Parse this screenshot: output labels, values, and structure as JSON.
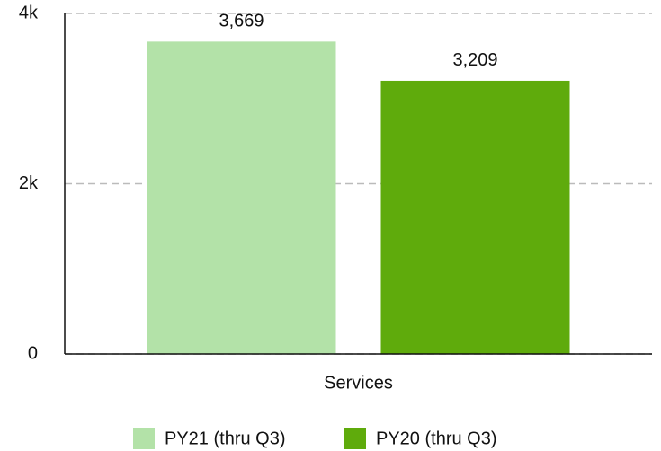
{
  "chart_data": {
    "type": "bar",
    "categories": [
      "Services"
    ],
    "series": [
      {
        "name": "PY21 (thru Q3)",
        "color": "#b3e2a8",
        "values": [
          3669
        ],
        "value_labels": [
          "3,669"
        ]
      },
      {
        "name": "PY20 (thru Q3)",
        "color": "#5fab0c",
        "values": [
          3209
        ],
        "value_labels": [
          "3,209"
        ]
      }
    ],
    "ylim": [
      0,
      4000
    ],
    "yticks": [
      0,
      {
        "value": 2000,
        "label": "2k"
      },
      {
        "value": 4000,
        "label": "4k"
      }
    ],
    "grid": true,
    "legend": "bottom"
  }
}
